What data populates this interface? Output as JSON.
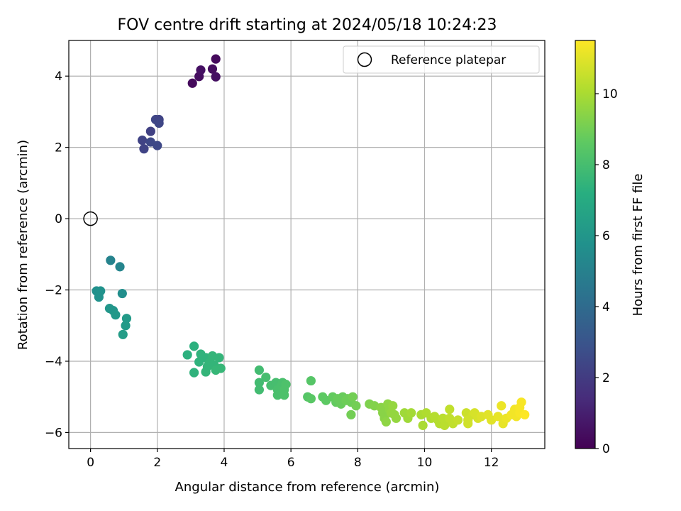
{
  "chart_data": {
    "type": "scatter",
    "title": "FOV centre drift starting at 2024/05/18 10:24:23",
    "xlabel": "Angular distance from reference (arcmin)",
    "ylabel": "Rotation from reference (arcmin)",
    "xlim": [
      -0.65,
      13.6
    ],
    "ylim": [
      -6.45,
      5.0
    ],
    "xticks": [
      "0",
      "2",
      "4",
      "6",
      "8",
      "10",
      "12"
    ],
    "yticks": [
      "−6",
      "−4",
      "−2",
      "0",
      "2",
      "4"
    ],
    "grid": true,
    "legend": {
      "placement": "top-right",
      "entries": [
        "Reference platepar"
      ]
    },
    "reference_point": {
      "x": 0,
      "y": 0
    },
    "colorbar": {
      "label": "Hours from first FF file",
      "colormap": "viridis",
      "range": [
        0,
        11.5
      ],
      "ticks": [
        "0",
        "2",
        "4",
        "6",
        "8",
        "10"
      ]
    },
    "series": [
      {
        "points": [
          [
            3.05,
            3.8,
            0.3
          ],
          [
            3.25,
            3.99,
            0.4
          ],
          [
            3.3,
            4.17,
            0.5
          ],
          [
            3.65,
            4.2,
            0.4
          ],
          [
            3.75,
            3.98,
            0.5
          ],
          [
            3.75,
            4.48,
            0.3
          ],
          [
            1.55,
            2.2,
            2.3
          ],
          [
            1.6,
            1.96,
            2.3
          ],
          [
            1.8,
            2.45,
            2.2
          ],
          [
            1.95,
            2.78,
            2.4
          ],
          [
            2.05,
            2.78,
            2.3
          ],
          [
            2.05,
            2.68,
            2.4
          ],
          [
            2.0,
            2.05,
            2.5
          ],
          [
            1.8,
            2.15,
            2.5
          ],
          [
            0.6,
            -1.17,
            5.1
          ],
          [
            0.88,
            -1.35,
            5.2
          ],
          [
            0.18,
            -2.03,
            5.7
          ],
          [
            0.3,
            -2.03,
            5.8
          ],
          [
            0.25,
            -2.2,
            5.8
          ],
          [
            0.95,
            -2.1,
            5.6
          ],
          [
            0.57,
            -2.52,
            6.0
          ],
          [
            0.68,
            -2.58,
            6.0
          ],
          [
            0.75,
            -2.7,
            6.1
          ],
          [
            1.08,
            -2.8,
            6.2
          ],
          [
            1.05,
            -3.0,
            6.2
          ],
          [
            0.97,
            -3.25,
            6.3
          ],
          [
            2.9,
            -3.82,
            7.3
          ],
          [
            3.1,
            -3.58,
            7.3
          ],
          [
            3.3,
            -3.8,
            7.4
          ],
          [
            3.45,
            -3.9,
            7.4
          ],
          [
            3.55,
            -4.05,
            7.5
          ],
          [
            3.65,
            -3.85,
            7.5
          ],
          [
            3.85,
            -3.9,
            7.5
          ],
          [
            3.25,
            -4.02,
            7.4
          ],
          [
            3.5,
            -4.15,
            7.5
          ],
          [
            3.7,
            -4.1,
            7.5
          ],
          [
            3.9,
            -4.2,
            7.6
          ],
          [
            3.1,
            -4.32,
            7.4
          ],
          [
            3.45,
            -4.3,
            7.5
          ],
          [
            3.75,
            -4.25,
            7.6
          ],
          [
            5.05,
            -4.25,
            7.9
          ],
          [
            5.25,
            -4.45,
            8.0
          ],
          [
            5.05,
            -4.6,
            7.9
          ],
          [
            5.05,
            -4.8,
            7.9
          ],
          [
            5.4,
            -4.68,
            8.0
          ],
          [
            5.55,
            -4.6,
            8.0
          ],
          [
            5.6,
            -4.8,
            8.1
          ],
          [
            5.6,
            -4.95,
            8.1
          ],
          [
            5.7,
            -4.7,
            8.1
          ],
          [
            5.75,
            -4.6,
            8.1
          ],
          [
            5.8,
            -4.8,
            8.2
          ],
          [
            5.85,
            -4.65,
            8.2
          ],
          [
            5.8,
            -4.95,
            8.2
          ],
          [
            6.5,
            -5.0,
            8.4
          ],
          [
            6.6,
            -4.55,
            8.4
          ],
          [
            6.6,
            -5.05,
            8.5
          ],
          [
            6.95,
            -5.0,
            8.6
          ],
          [
            7.05,
            -5.1,
            8.6
          ],
          [
            7.25,
            -5.0,
            8.7
          ],
          [
            7.35,
            -5.15,
            8.7
          ],
          [
            7.4,
            -5.05,
            8.8
          ],
          [
            7.5,
            -5.2,
            8.8
          ],
          [
            7.55,
            -5.0,
            8.8
          ],
          [
            7.65,
            -5.1,
            8.9
          ],
          [
            7.7,
            -5.05,
            8.9
          ],
          [
            7.8,
            -5.15,
            8.9
          ],
          [
            7.85,
            -5.0,
            9.0
          ],
          [
            7.95,
            -5.25,
            9.0
          ],
          [
            7.8,
            -5.5,
            9.0
          ],
          [
            8.35,
            -5.2,
            9.2
          ],
          [
            8.5,
            -5.25,
            9.3
          ],
          [
            8.7,
            -5.3,
            9.4
          ],
          [
            8.75,
            -5.45,
            9.4
          ],
          [
            8.8,
            -5.6,
            9.4
          ],
          [
            8.85,
            -5.7,
            9.5
          ],
          [
            8.9,
            -5.2,
            9.5
          ],
          [
            8.95,
            -5.35,
            9.5
          ],
          [
            9.0,
            -5.45,
            9.6
          ],
          [
            9.05,
            -5.25,
            9.6
          ],
          [
            9.1,
            -5.5,
            9.6
          ],
          [
            9.15,
            -5.6,
            9.6
          ],
          [
            9.4,
            -5.45,
            9.8
          ],
          [
            9.5,
            -5.6,
            9.8
          ],
          [
            9.6,
            -5.45,
            9.9
          ],
          [
            9.9,
            -5.5,
            10.0
          ],
          [
            9.95,
            -5.8,
            10.0
          ],
          [
            10.05,
            -5.45,
            10.1
          ],
          [
            10.2,
            -5.6,
            10.1
          ],
          [
            10.3,
            -5.55,
            10.2
          ],
          [
            10.4,
            -5.65,
            10.2
          ],
          [
            10.45,
            -5.75,
            10.2
          ],
          [
            10.55,
            -5.6,
            10.3
          ],
          [
            10.6,
            -5.8,
            10.3
          ],
          [
            10.65,
            -5.7,
            10.3
          ],
          [
            10.75,
            -5.6,
            10.4
          ],
          [
            10.75,
            -5.35,
            10.4
          ],
          [
            10.85,
            -5.75,
            10.4
          ],
          [
            11.0,
            -5.65,
            10.5
          ],
          [
            11.25,
            -5.45,
            10.6
          ],
          [
            11.3,
            -5.65,
            10.7
          ],
          [
            11.3,
            -5.75,
            10.7
          ],
          [
            11.45,
            -5.5,
            10.7
          ],
          [
            11.5,
            -5.45,
            10.8
          ],
          [
            11.6,
            -5.6,
            10.8
          ],
          [
            11.7,
            -5.55,
            10.9
          ],
          [
            11.9,
            -5.5,
            11.0
          ],
          [
            12.0,
            -5.65,
            11.0
          ],
          [
            12.2,
            -5.55,
            11.1
          ],
          [
            12.35,
            -5.75,
            11.1
          ],
          [
            12.45,
            -5.6,
            11.2
          ],
          [
            12.3,
            -5.25,
            11.2
          ],
          [
            12.6,
            -5.5,
            11.3
          ],
          [
            12.7,
            -5.35,
            11.3
          ],
          [
            12.75,
            -5.55,
            11.3
          ],
          [
            12.85,
            -5.45,
            11.4
          ],
          [
            12.9,
            -5.15,
            11.4
          ],
          [
            13.0,
            -5.5,
            11.5
          ],
          [
            12.85,
            -5.3,
            11.4
          ]
        ]
      }
    ]
  }
}
